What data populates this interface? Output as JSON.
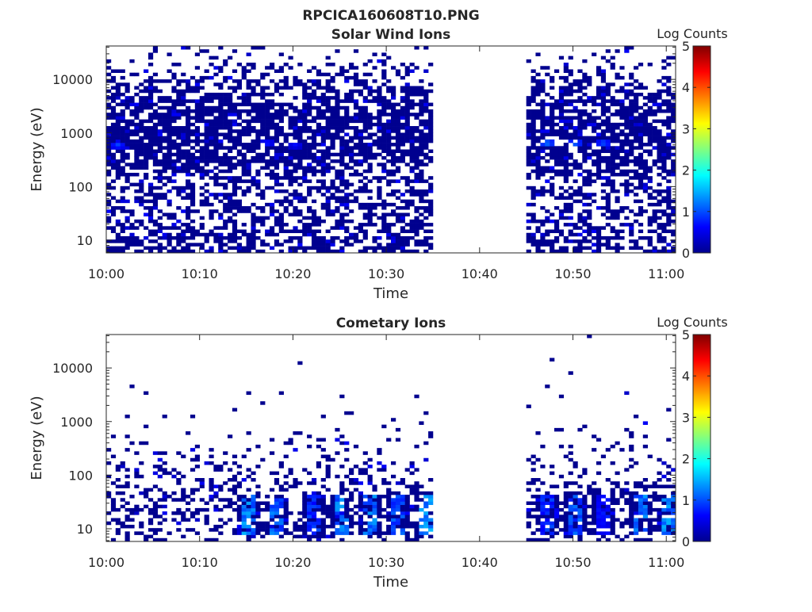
{
  "figure": {
    "title": "RPCICA160608T10.PNG"
  },
  "colormap": [
    "#00008f",
    "#0000ff",
    "#0080ff",
    "#00ffff",
    "#80ff80",
    "#ffff00",
    "#ff8000",
    "#ff0000",
    "#800000"
  ],
  "chart_data": [
    {
      "type": "heatmap",
      "title": "Solar Wind Ions",
      "xlabel": "Time",
      "ylabel": "Energy (eV)",
      "yscale": "log",
      "ylim": [
        5.8,
        42000
      ],
      "xlim": [
        "10:00",
        "11:01"
      ],
      "xticks": [
        "10:00",
        "10:10",
        "10:20",
        "10:30",
        "10:40",
        "10:50",
        "11:00"
      ],
      "yticks": [
        "10",
        "100",
        "1000",
        "10000"
      ],
      "colorbar": {
        "label": "Log Counts",
        "range": [
          0,
          5
        ],
        "ticks": [
          "0",
          "1",
          "2",
          "3",
          "4",
          "5"
        ]
      },
      "data_gap": [
        "10:35",
        "10:45"
      ],
      "data_segments": [
        [
          "10:00",
          "10:35"
        ],
        [
          "10:45",
          "11:01"
        ]
      ],
      "density_profile": [
        {
          "energy_eV": 8,
          "fill_fraction": 0.55
        },
        {
          "energy_eV": 20,
          "fill_fraction": 0.5
        },
        {
          "energy_eV": 60,
          "fill_fraction": 0.45
        },
        {
          "energy_eV": 150,
          "fill_fraction": 0.5
        },
        {
          "energy_eV": 300,
          "fill_fraction": 0.75
        },
        {
          "energy_eV": 1000,
          "fill_fraction": 0.8
        },
        {
          "energy_eV": 5000,
          "fill_fraction": 0.6
        },
        {
          "energy_eV": 20000,
          "fill_fraction": 0.2
        }
      ],
      "hotspots": [
        {
          "time": "10:01",
          "energy_eV": 600,
          "log_counts": 1.0
        },
        {
          "time": "10:17",
          "energy_eV": 650,
          "log_counts": 0.8
        },
        {
          "time": "10:20",
          "energy_eV": 600,
          "log_counts": 0.7
        },
        {
          "time": "10:47",
          "energy_eV": 650,
          "log_counts": 1.3
        },
        {
          "time": "10:50",
          "energy_eV": 650,
          "log_counts": 1.2
        },
        {
          "time": "10:53",
          "energy_eV": 650,
          "log_counts": 1.1
        }
      ]
    },
    {
      "type": "heatmap",
      "title": "Cometary Ions",
      "xlabel": "Time",
      "ylabel": "Energy (eV)",
      "yscale": "log",
      "ylim": [
        5.8,
        42000
      ],
      "xlim": [
        "10:00",
        "11:01"
      ],
      "xticks": [
        "10:00",
        "10:10",
        "10:20",
        "10:30",
        "10:40",
        "10:50",
        "11:00"
      ],
      "yticks": [
        "10",
        "100",
        "1000",
        "10000"
      ],
      "colorbar": {
        "label": "Log Counts",
        "range": [
          0,
          5
        ],
        "ticks": [
          "0",
          "1",
          "2",
          "3",
          "4",
          "5"
        ]
      },
      "data_gap": [
        "10:35",
        "10:45"
      ],
      "data_segments": [
        [
          "10:00",
          "10:35"
        ],
        [
          "10:45",
          "11:01"
        ]
      ],
      "density_profile": [
        {
          "energy_eV": 8,
          "fill_fraction": 0.35
        },
        {
          "energy_eV": 20,
          "fill_fraction": 0.4
        },
        {
          "energy_eV": 60,
          "fill_fraction": 0.3
        },
        {
          "energy_eV": 150,
          "fill_fraction": 0.2
        },
        {
          "energy_eV": 500,
          "fill_fraction": 0.05
        },
        {
          "energy_eV": 2000,
          "fill_fraction": 0.02
        },
        {
          "energy_eV": 10000,
          "fill_fraction": 0.003
        }
      ],
      "columns": [
        {
          "time": "10:15",
          "energy_range_eV": [
            8,
            40
          ],
          "peak_log_counts": 1.5
        },
        {
          "time": "10:18",
          "energy_range_eV": [
            8,
            40
          ],
          "peak_log_counts": 1.3
        },
        {
          "time": "10:22",
          "energy_range_eV": [
            8,
            40
          ],
          "peak_log_counts": 1.0
        },
        {
          "time": "10:25",
          "energy_range_eV": [
            8,
            40
          ],
          "peak_log_counts": 1.5
        },
        {
          "time": "10:28",
          "energy_range_eV": [
            8,
            40
          ],
          "peak_log_counts": 1.4
        },
        {
          "time": "10:31",
          "energy_range_eV": [
            8,
            40
          ],
          "peak_log_counts": 1.2
        },
        {
          "time": "10:34",
          "energy_range_eV": [
            8,
            40
          ],
          "peak_log_counts": 1.6
        },
        {
          "time": "10:47",
          "energy_range_eV": [
            8,
            40
          ],
          "peak_log_counts": 1.0
        },
        {
          "time": "10:50",
          "energy_range_eV": [
            8,
            40
          ],
          "peak_log_counts": 1.2
        },
        {
          "time": "10:53",
          "energy_range_eV": [
            8,
            40
          ],
          "peak_log_counts": 0.8
        },
        {
          "time": "10:57",
          "energy_range_eV": [
            8,
            40
          ],
          "peak_log_counts": 1.4
        },
        {
          "time": "11:00",
          "energy_range_eV": [
            8,
            40
          ],
          "peak_log_counts": 1.5
        }
      ],
      "hotspots": [
        {
          "time": "10:01",
          "energy_eV": 550,
          "log_counts": 0.1
        },
        {
          "time": "10:17",
          "energy_eV": 600,
          "log_counts": 0.1
        },
        {
          "time": "10:20",
          "energy_eV": 600,
          "log_counts": 0.1
        },
        {
          "time": "10:47",
          "energy_eV": 600,
          "log_counts": 0.1
        },
        {
          "time": "10:50",
          "energy_eV": 600,
          "log_counts": 0.1
        },
        {
          "time": "10:53",
          "energy_eV": 600,
          "log_counts": 0.1
        }
      ]
    }
  ]
}
